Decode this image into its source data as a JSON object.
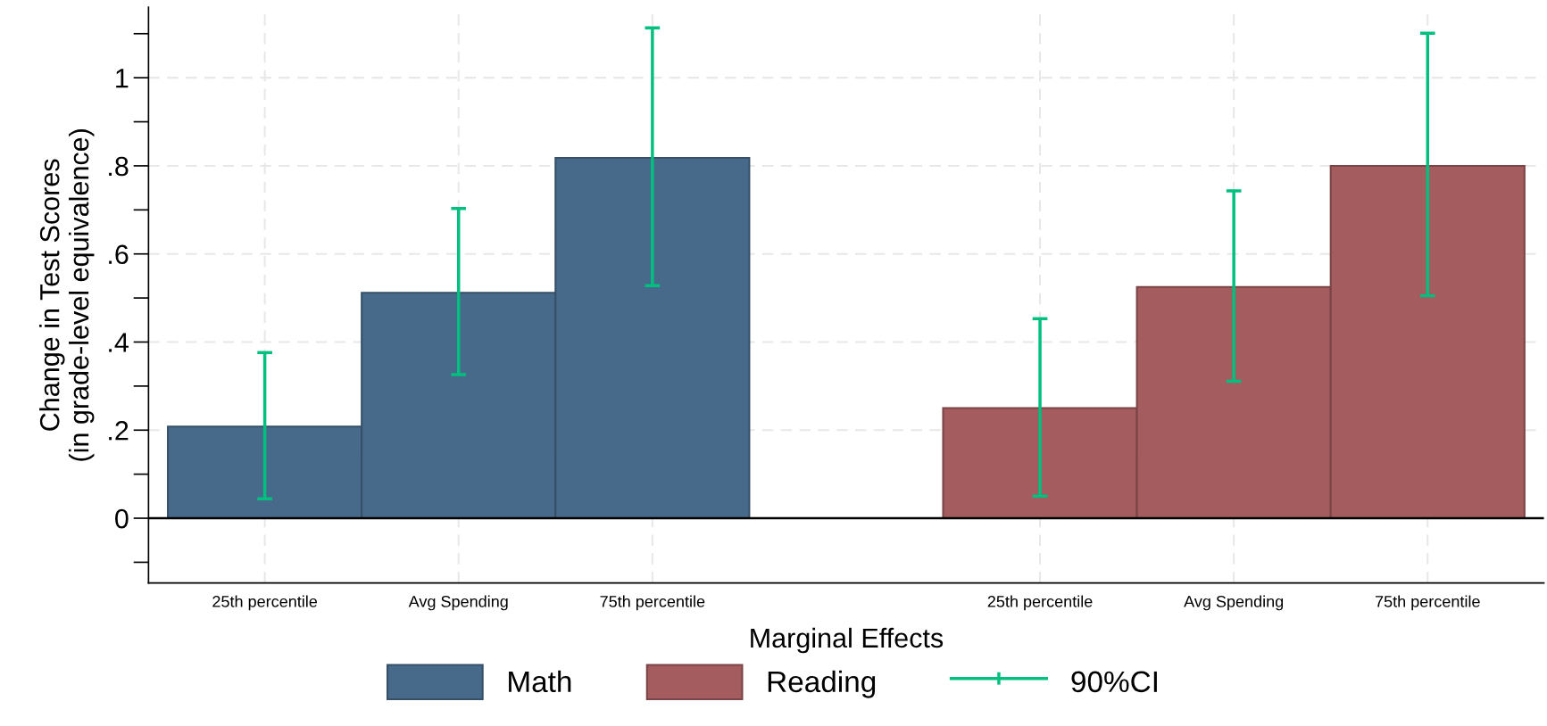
{
  "chart_data": {
    "type": "bar",
    "xlabel": "Marginal Effects",
    "ylabel": "Change in Test Scores\n(in grade-level equivalence)",
    "categories": [
      "25th percentile",
      "Avg Spending",
      "75th percentile",
      null,
      "25th percentile",
      "Avg Spending",
      "75th percentile"
    ],
    "series": [
      {
        "name": "Math",
        "color": "#476a8a",
        "values": [
          0.208,
          0.512,
          0.818,
          null,
          null,
          null,
          null
        ],
        "errors": [
          [
            0.044,
            0.376
          ],
          [
            0.326,
            0.703
          ],
          [
            0.528,
            1.113
          ],
          null,
          null,
          null,
          null
        ]
      },
      {
        "name": "Reading",
        "color": "#a45c5f",
        "values": [
          null,
          null,
          null,
          null,
          0.25,
          0.525,
          0.8
        ],
        "errors": [
          null,
          null,
          null,
          null,
          [
            0.05,
            0.453
          ],
          [
            0.311,
            0.743
          ],
          [
            0.505,
            1.101
          ]
        ]
      }
    ],
    "annotations": [
      "90%CI"
    ],
    "ylim": [
      -0.147,
      1.16
    ],
    "yticks": [
      {
        "value": 0,
        "label": "0"
      },
      {
        "value": 0.2,
        "label": ".2"
      },
      {
        "value": 0.4,
        "label": ".4"
      },
      {
        "value": 0.6,
        "label": ".6"
      },
      {
        "value": 0.8,
        "label": ".8"
      },
      {
        "value": 1,
        "label": "1"
      }
    ],
    "grid": true,
    "legend": "bottom"
  }
}
